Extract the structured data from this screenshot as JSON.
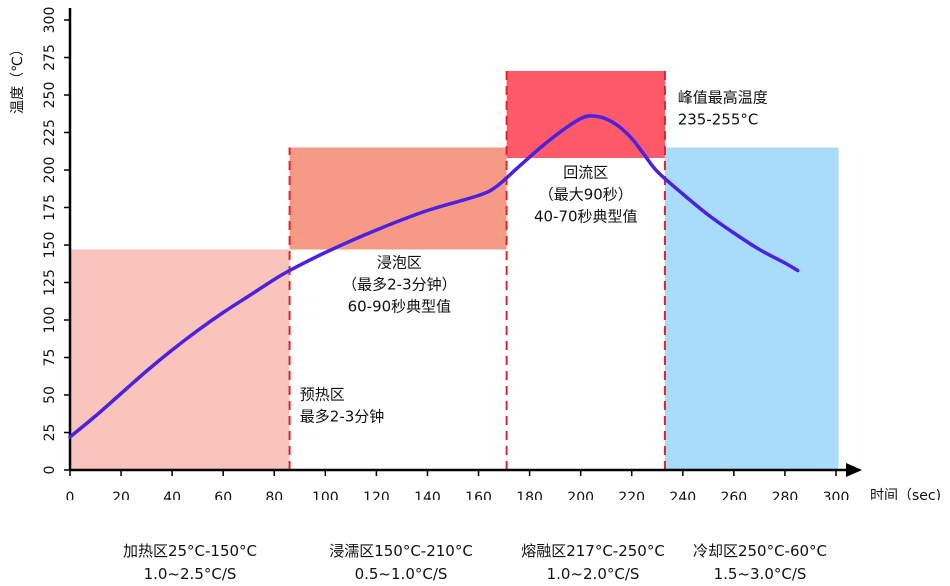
{
  "chart_data": {
    "type": "line",
    "xlabel": "时间（sec)",
    "ylabel": "温度（℃）",
    "xlim": [
      0,
      300
    ],
    "ylim": [
      0,
      300
    ],
    "x_ticks": [
      0,
      20,
      40,
      60,
      80,
      100,
      120,
      140,
      160,
      180,
      200,
      220,
      240,
      260,
      280,
      300
    ],
    "y_ticks": [
      0,
      25,
      50,
      75,
      100,
      125,
      150,
      175,
      200,
      225,
      250,
      275,
      300
    ],
    "grid": false,
    "series": [
      {
        "color": "#4a22e0",
        "x": [
          0,
          10,
          20,
          30,
          40,
          50,
          60,
          70,
          80,
          86,
          100,
          120,
          140,
          160,
          167,
          175,
          185,
          195,
          201,
          205,
          210,
          215,
          220,
          225,
          230,
          240,
          250,
          260,
          270,
          280,
          285
        ],
        "y": [
          22,
          36,
          51,
          66,
          80,
          93,
          105,
          116,
          127,
          133,
          145,
          160,
          173,
          183,
          189,
          201,
          216,
          229,
          235,
          236,
          234,
          229,
          221,
          210,
          199,
          184,
          170,
          158,
          147,
          138,
          133
        ]
      }
    ],
    "zones": [
      {
        "x0": 0,
        "x1": 86,
        "y0": 0,
        "y1": 147,
        "color": "#f9c4bb"
      },
      {
        "x0": 86,
        "x1": 171,
        "y0": 147,
        "y1": 215,
        "color": "#f79a85"
      },
      {
        "x0": 171,
        "x1": 233,
        "y0": 208,
        "y1": 266,
        "color": "#ff5a69"
      },
      {
        "x0": 233,
        "x1": 301,
        "y0": 0,
        "y1": 215,
        "color": "#a9dcfa"
      }
    ],
    "boundaries": [
      86,
      171,
      233
    ],
    "boundary_color": "#e0242c",
    "annotations": [
      {
        "x": 90,
        "y": 47,
        "lines": [
          "预热区",
          "最多2-3分钟"
        ],
        "anchor": "start"
      },
      {
        "x": 129,
        "y": 135,
        "lines": [
          "浸泡区",
          "（最多2-3分钟）",
          "60-90秒典型值"
        ],
        "anchor": "middle"
      },
      {
        "x": 202,
        "y": 195,
        "lines": [
          "回流区",
          "（最大90秒）",
          "40-70秒典型值"
        ],
        "anchor": "middle"
      },
      {
        "x": 238,
        "y": 245,
        "lines": [
          "峰值最高温度",
          "235-255°C"
        ],
        "anchor": "start"
      }
    ]
  },
  "zone_labels": [
    {
      "title": "加热区25°C-150°C",
      "rate": "1.0~2.5°C/S"
    },
    {
      "title": "浸濡区150°C-210°C",
      "rate": "0.5~1.0°C/S"
    },
    {
      "title": "熔融区217°C-250°C",
      "rate": "1.0~2.0°C/S"
    },
    {
      "title": "冷却区250°C-60°C",
      "rate": "1.5~3.0°C/S"
    }
  ]
}
